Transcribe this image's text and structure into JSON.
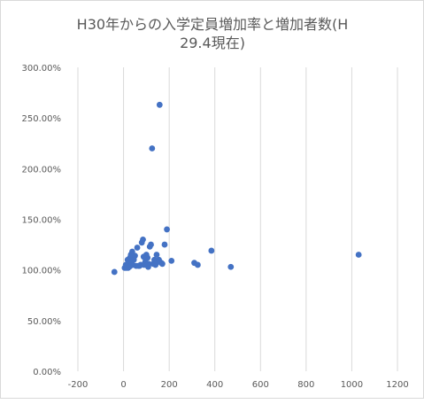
{
  "chart_data": {
    "type": "scatter",
    "title_lines": [
      "H30年からの入学定員増加率と増加者数(H",
      "29.4現在)"
    ],
    "xlim": [
      -200,
      1200
    ],
    "ylim": [
      0,
      3.0
    ],
    "x_ticks": [
      -200,
      0,
      200,
      400,
      600,
      800,
      1000,
      1200
    ],
    "x_tick_labels": [
      "-200",
      "0",
      "200",
      "400",
      "600",
      "800",
      "1000",
      "1200"
    ],
    "y_ticks": [
      0,
      0.5,
      1.0,
      1.5,
      2.0,
      2.5,
      3.0
    ],
    "y_tick_labels": [
      "0.00%",
      "50.00%",
      "100.00%",
      "150.00%",
      "200.00%",
      "250.00%",
      "300.00%"
    ],
    "grid": "vertical",
    "legend": "none",
    "marker_color": "#4472c4",
    "series": [
      {
        "points": [
          [
            -40,
            0.98
          ],
          [
            5,
            1.02
          ],
          [
            10,
            1.05
          ],
          [
            12,
            1.02
          ],
          [
            15,
            1.04
          ],
          [
            18,
            1.1
          ],
          [
            20,
            1.02
          ],
          [
            22,
            1.06
          ],
          [
            25,
            1.03
          ],
          [
            28,
            1.12
          ],
          [
            30,
            1.04
          ],
          [
            32,
            1.15
          ],
          [
            35,
            1.08
          ],
          [
            38,
            1.18
          ],
          [
            40,
            1.05
          ],
          [
            45,
            1.1
          ],
          [
            50,
            1.14
          ],
          [
            55,
            1.04
          ],
          [
            60,
            1.22
          ],
          [
            65,
            1.04
          ],
          [
            70,
            1.04
          ],
          [
            75,
            1.05
          ],
          [
            80,
            1.27
          ],
          [
            85,
            1.3
          ],
          [
            88,
            1.13
          ],
          [
            90,
            1.05
          ],
          [
            95,
            1.08
          ],
          [
            100,
            1.15
          ],
          [
            102,
            1.05
          ],
          [
            105,
            1.12
          ],
          [
            108,
            1.03
          ],
          [
            110,
            1.06
          ],
          [
            115,
            1.23
          ],
          [
            120,
            1.25
          ],
          [
            125,
            2.2
          ],
          [
            130,
            1.06
          ],
          [
            135,
            1.1
          ],
          [
            140,
            1.05
          ],
          [
            145,
            1.15
          ],
          [
            150,
            1.08
          ],
          [
            155,
            1.1
          ],
          [
            158,
            2.63
          ],
          [
            165,
            1.07
          ],
          [
            170,
            1.06
          ],
          [
            180,
            1.25
          ],
          [
            190,
            1.4
          ],
          [
            210,
            1.09
          ],
          [
            310,
            1.07
          ],
          [
            325,
            1.05
          ],
          [
            385,
            1.19
          ],
          [
            470,
            1.03
          ],
          [
            1030,
            1.15
          ]
        ]
      }
    ]
  }
}
